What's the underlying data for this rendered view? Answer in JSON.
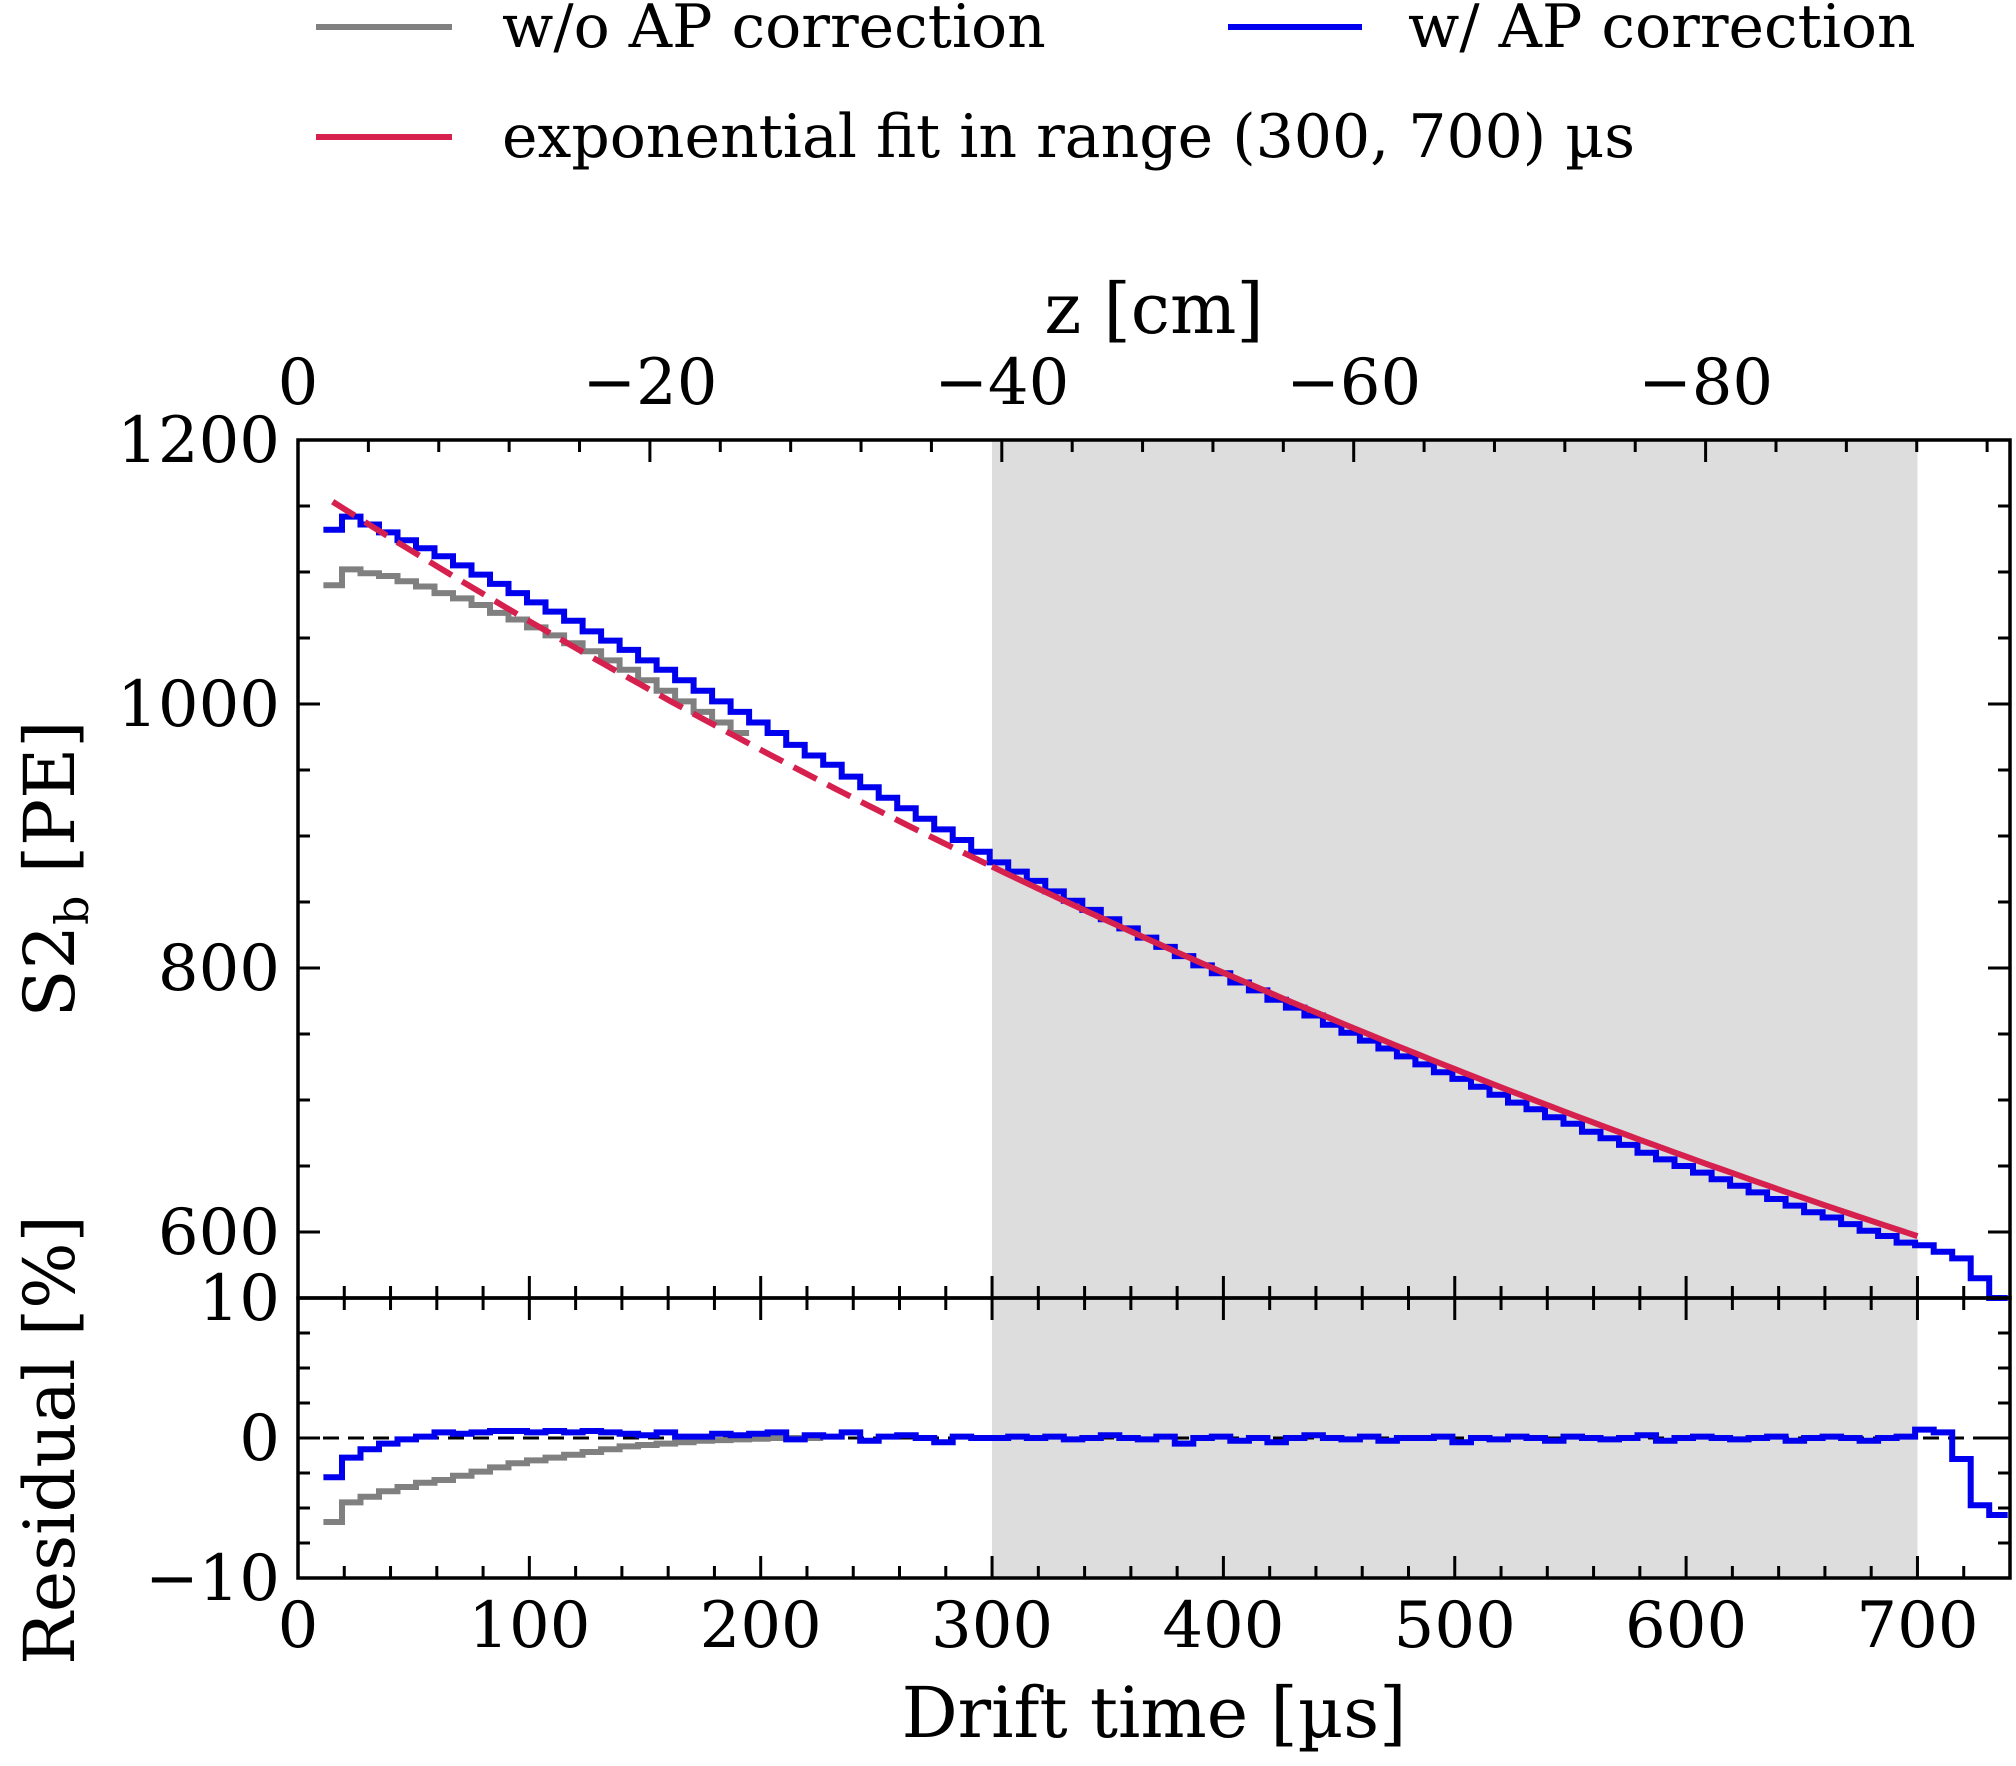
{
  "chart_data": {
    "type": "line",
    "legend": {
      "placement": "top",
      "entries": [
        {
          "label": "w/o AP correction",
          "color": "#808080",
          "style": "solid"
        },
        {
          "label": "w/ AP correction",
          "color": "#0000ee",
          "style": "solid"
        },
        {
          "label": "exponential fit in range (300, 700) µs",
          "color": "#d6204e",
          "style": "solid"
        }
      ]
    },
    "shaded_region": {
      "x": [
        300,
        700
      ],
      "color": "#dddddd"
    },
    "x_axis": {
      "label": "Drift time [µs]",
      "range": [
        0,
        740
      ],
      "ticks": [
        0,
        100,
        200,
        300,
        400,
        500,
        600,
        700
      ],
      "tick_labels": [
        "0",
        "100",
        "200",
        "300",
        "400",
        "500",
        "600",
        "700"
      ]
    },
    "top_axis": {
      "label": "z [cm]",
      "range": [
        0,
        -97.3
      ],
      "ticks": [
        0,
        -20,
        -40,
        -60,
        -80
      ],
      "tick_labels": [
        "0",
        "−20",
        "−40",
        "−60",
        "−80"
      ]
    },
    "main_panel": {
      "ylabel_main": "S2",
      "ylabel_sub": "b",
      "ylabel_unit": "[PE]",
      "ylim": [
        550,
        1200
      ],
      "y_ticks": [
        600,
        800,
        1000,
        1200
      ],
      "y_tick_labels": [
        "600",
        "800",
        "1000",
        "1200"
      ]
    },
    "residual_panel": {
      "ylabel": "Residual [%]",
      "ylim": [
        -10,
        10
      ],
      "y_ticks": [
        -10,
        0,
        10
      ],
      "y_tick_labels": [
        "−10",
        "0",
        "10"
      ]
    },
    "bin_width": 8,
    "series": [
      {
        "name": "w/o AP correction",
        "color": "#808080",
        "x": [
          15,
          23,
          31,
          39,
          47,
          55,
          63,
          71,
          79,
          87,
          95,
          103,
          111,
          119,
          127,
          135,
          143,
          151,
          159,
          167,
          175,
          183,
          191
        ],
        "values": [
          1090,
          1102,
          1099,
          1097,
          1093,
          1089,
          1084,
          1080,
          1075,
          1069,
          1064,
          1058,
          1052,
          1046,
          1040,
          1033,
          1026,
          1018,
          1010,
          1002,
          994,
          986,
          978
        ]
      },
      {
        "name": "w/ AP correction",
        "color": "#0000ee",
        "x": [
          15,
          23,
          31,
          39,
          47,
          55,
          63,
          71,
          79,
          87,
          95,
          103,
          111,
          119,
          127,
          135,
          143,
          151,
          159,
          167,
          175,
          183,
          191,
          199,
          207,
          215,
          223,
          231,
          239,
          247,
          255,
          263,
          271,
          279,
          287,
          295,
          303,
          311,
          319,
          327,
          335,
          343,
          351,
          359,
          367,
          375,
          383,
          391,
          399,
          407,
          415,
          423,
          431,
          439,
          447,
          455,
          463,
          471,
          479,
          487,
          495,
          503,
          511,
          519,
          527,
          535,
          543,
          551,
          559,
          567,
          575,
          583,
          591,
          599,
          607,
          615,
          623,
          631,
          639,
          647,
          655,
          663,
          671,
          679,
          687,
          695,
          703,
          711,
          719,
          727,
          735
        ],
        "values": [
          1132,
          1142,
          1136,
          1130,
          1124,
          1118,
          1112,
          1105,
          1098,
          1091,
          1084,
          1077,
          1070,
          1063,
          1055,
          1048,
          1041,
          1033,
          1026,
          1018,
          1010,
          1002,
          994,
          986,
          978,
          969,
          961,
          954,
          945,
          937,
          929,
          921,
          913,
          905,
          897,
          888,
          880,
          873,
          866,
          858,
          851,
          844,
          837,
          830,
          823,
          816,
          809,
          802,
          796,
          789,
          783,
          776,
          770,
          764,
          757,
          751,
          745,
          739,
          733,
          727,
          721,
          716,
          710,
          704,
          698,
          693,
          687,
          682,
          676,
          671,
          666,
          660,
          655,
          650,
          645,
          640,
          635,
          630,
          625,
          620,
          615,
          611,
          606,
          601,
          597,
          592,
          590,
          585,
          580,
          565,
          550
        ]
      },
      {
        "name": "exponential fit in range (300, 700) µs",
        "color": "#d6204e",
        "type": "exponential",
        "amplitude": 1170,
        "tau_us": 1040,
        "solid_range": [
          300,
          700
        ],
        "dashed_range": [
          15,
          300
        ]
      }
    ],
    "residual_series": [
      {
        "name": "w/o AP correction",
        "color": "#808080",
        "x": [
          15,
          23,
          31,
          39,
          47,
          55,
          63,
          71,
          79,
          87,
          95,
          103,
          111,
          119,
          127,
          135,
          143,
          151,
          159,
          167,
          175,
          183,
          191,
          199,
          207,
          215,
          223
        ],
        "values": [
          -6.0,
          -4.6,
          -4.2,
          -3.8,
          -3.5,
          -3.2,
          -3.0,
          -2.7,
          -2.4,
          -2.1,
          -1.8,
          -1.6,
          -1.4,
          -1.2,
          -1.0,
          -0.8,
          -0.6,
          -0.5,
          -0.4,
          -0.3,
          -0.2,
          -0.15,
          -0.1,
          -0.05,
          0.0,
          0.0,
          0.0
        ]
      },
      {
        "name": "w/ AP correction",
        "color": "#0000ee",
        "x": [
          15,
          23,
          31,
          39,
          47,
          55,
          63,
          71,
          79,
          87,
          95,
          103,
          111,
          119,
          127,
          135,
          143,
          151,
          159,
          167,
          175,
          183,
          191,
          199,
          207,
          215,
          223,
          231,
          239,
          247,
          255,
          263,
          271,
          279,
          287,
          295,
          303,
          311,
          319,
          327,
          335,
          343,
          351,
          359,
          367,
          375,
          383,
          391,
          399,
          407,
          415,
          423,
          431,
          439,
          447,
          455,
          463,
          471,
          479,
          487,
          495,
          503,
          511,
          519,
          527,
          535,
          543,
          551,
          559,
          567,
          575,
          583,
          591,
          599,
          607,
          615,
          623,
          631,
          639,
          647,
          655,
          663,
          671,
          679,
          687,
          695,
          703,
          711,
          719,
          727,
          735
        ],
        "values": [
          -2.8,
          -1.4,
          -0.8,
          -0.4,
          -0.1,
          0.1,
          0.4,
          0.3,
          0.4,
          0.5,
          0.5,
          0.4,
          0.5,
          0.4,
          0.5,
          0.4,
          0.3,
          0.2,
          0.4,
          0.1,
          0.1,
          0.3,
          0.2,
          0.3,
          0.4,
          -0.1,
          0.2,
          0.1,
          0.4,
          -0.2,
          0.1,
          0.2,
          0.0,
          -0.3,
          0.1,
          0.0,
          0.0,
          0.1,
          0.0,
          0.1,
          -0.1,
          0.0,
          0.2,
          0.0,
          -0.1,
          0.1,
          -0.4,
          0.0,
          0.1,
          -0.2,
          0.0,
          -0.3,
          0.0,
          0.2,
          0.0,
          -0.1,
          0.1,
          -0.2,
          0.0,
          0.0,
          0.1,
          -0.3,
          0.0,
          -0.1,
          0.1,
          0.0,
          -0.2,
          0.1,
          0.0,
          -0.1,
          0.0,
          0.2,
          -0.2,
          0.0,
          0.1,
          0.0,
          -0.1,
          0.0,
          0.1,
          -0.2,
          0.0,
          0.1,
          0.0,
          -0.2,
          0.0,
          0.1,
          0.6,
          0.4,
          -1.5,
          -4.8,
          -5.5
        ]
      }
    ],
    "residual_reference_line": {
      "y": 0,
      "style": "dashed",
      "color": "#000000"
    }
  }
}
